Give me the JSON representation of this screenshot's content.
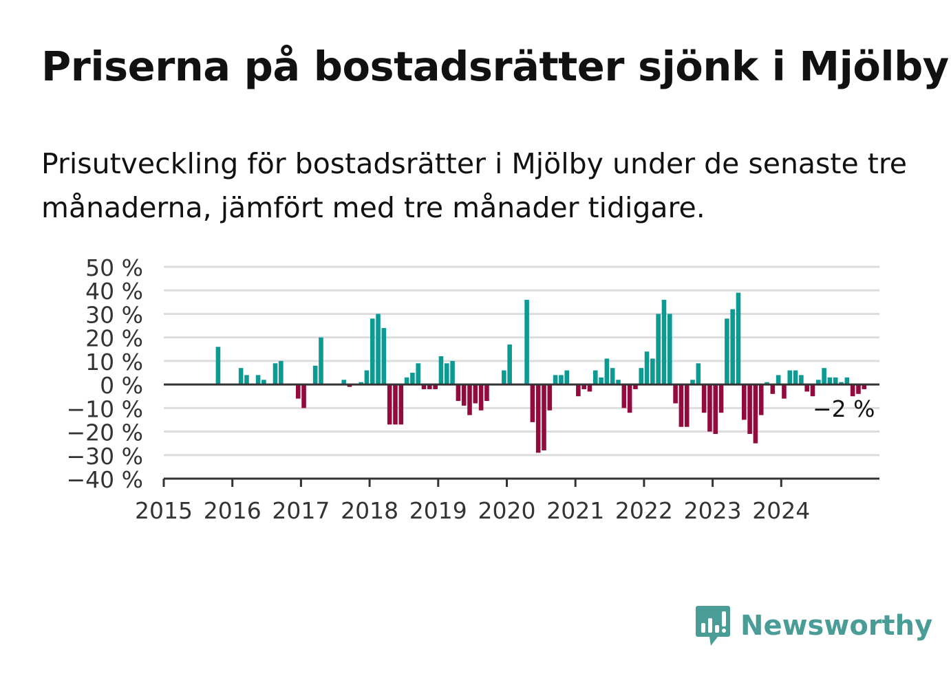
{
  "header": {
    "title": "Priserna på bostadsrätter sjönk i Mjölby",
    "subtitle": "Prisutveckling för bostadsrätter i Mjölby under de senaste tre månaderna, jämfört med tre månader tidigare."
  },
  "brand": {
    "name": "Newsworthy",
    "icon": "newsworthy-logo-icon",
    "color": "#4a9d97"
  },
  "colors": {
    "positive": "#0d9a92",
    "negative": "#930a3e",
    "grid": "#dddddd",
    "axis": "#333333"
  },
  "chart_data": {
    "type": "bar",
    "x_start": "2015-10",
    "x_end": "2024-11",
    "x_tick_labels": [
      "2015",
      "2016",
      "2017",
      "2018",
      "2019",
      "2020",
      "2021",
      "2022",
      "2023",
      "2024"
    ],
    "y_tick_labels": [
      "50 %",
      "40 %",
      "30 %",
      "20 %",
      "10 %",
      "0 %",
      "−10 %",
      "−20 %",
      "−30 %",
      "−40 %"
    ],
    "ylim": [
      -40,
      50
    ],
    "grid": true,
    "annotation": {
      "text": "−2 %",
      "date": "2024-11"
    },
    "series": [
      {
        "values": [
          16,
          0,
          0,
          0,
          7,
          4,
          0,
          4,
          2,
          0,
          9,
          10,
          0,
          0,
          -6,
          -10,
          0,
          8,
          20,
          0,
          0,
          0,
          2,
          -1,
          0,
          1,
          6,
          28,
          30,
          24,
          -17,
          -17,
          -17,
          3,
          5,
          9,
          -2,
          -2,
          -2,
          12,
          9,
          10,
          -7,
          -9,
          -13,
          -8,
          -11,
          -7,
          0,
          0,
          6,
          17,
          0,
          0,
          36,
          -16,
          -29,
          -28,
          -11,
          4,
          4,
          6,
          0,
          -5,
          -2,
          -3,
          6,
          3,
          11,
          7,
          2,
          -10,
          -12,
          -2,
          7,
          14,
          11,
          30,
          36,
          30,
          -8,
          -18,
          -18,
          2,
          9,
          -12,
          -20,
          -21,
          -12,
          28,
          32,
          39,
          -15,
          -21,
          -25,
          -13,
          1,
          -4,
          4,
          -6,
          6,
          6,
          4,
          -3,
          -5,
          2,
          7,
          3,
          3,
          1,
          3,
          -5,
          -4,
          -2
        ]
      }
    ]
  }
}
